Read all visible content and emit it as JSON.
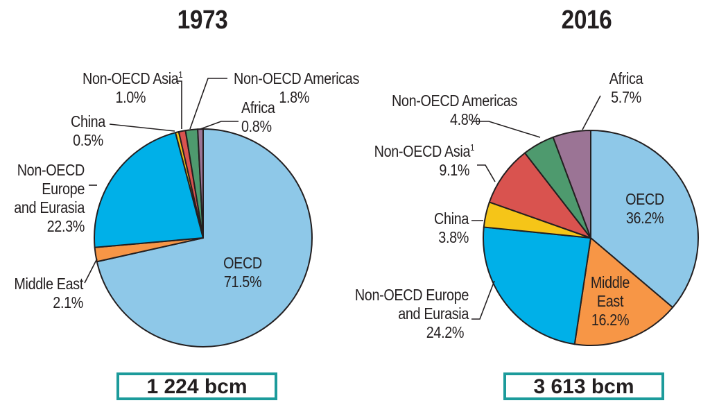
{
  "chart_data": [
    {
      "type": "pie",
      "title": "1973",
      "total": "1 224 bcm",
      "slices": [
        {
          "name": "OECD",
          "label": "OECD",
          "value": 71.5,
          "value_label": "71.5%",
          "color": "#8ec8e8"
        },
        {
          "name": "Middle East",
          "label": "Middle East",
          "value": 2.1,
          "value_label": "2.1%",
          "color": "#f79646"
        },
        {
          "name": "Non-OECD Europe and Eurasia",
          "label_lines": [
            "Non-OECD",
            "Europe",
            "and Eurasia"
          ],
          "value": 22.3,
          "value_label": "22.3%",
          "color": "#00b0e8"
        },
        {
          "name": "China",
          "label": "China",
          "value": 0.5,
          "value_label": "0.5%",
          "color": "#f5c518"
        },
        {
          "name": "Non-OECD Asia",
          "label": "Non-OECD Asia",
          "footnote": "1",
          "value": 1.0,
          "value_label": "1.0%",
          "color": "#d9534f"
        },
        {
          "name": "Non-OECD Americas",
          "label": "Non-OECD Americas",
          "value": 1.8,
          "value_label": "1.8%",
          "color": "#4e9a6e"
        },
        {
          "name": "Africa",
          "label": "Africa",
          "value": 0.8,
          "value_label": "0.8%",
          "color": "#9b7495"
        }
      ]
    },
    {
      "type": "pie",
      "title": "2016",
      "total": "3 613 bcm",
      "slices": [
        {
          "name": "OECD",
          "label": "OECD",
          "value": 36.2,
          "value_label": "36.2%",
          "color": "#8ec8e8"
        },
        {
          "name": "Middle East",
          "label_lines": [
            "Middle",
            "East"
          ],
          "value": 16.2,
          "value_label": "16.2%",
          "color": "#f79646"
        },
        {
          "name": "Non-OECD Europe and Eurasia",
          "label_lines": [
            "Non-OECD Europe",
            "and Eurasia"
          ],
          "value": 24.2,
          "value_label": "24.2%",
          "color": "#00b0e8"
        },
        {
          "name": "China",
          "label": "China",
          "value": 3.8,
          "value_label": "3.8%",
          "color": "#f5c518"
        },
        {
          "name": "Non-OECD Asia",
          "label": "Non-OECD Asia",
          "footnote": "1",
          "value": 9.1,
          "value_label": "9.1%",
          "color": "#d9534f"
        },
        {
          "name": "Non-OECD Americas",
          "label": "Non-OECD Americas",
          "value": 4.8,
          "value_label": "4.8%",
          "color": "#4e9a6e"
        },
        {
          "name": "Africa",
          "label": "Africa",
          "value": 5.7,
          "value_label": "5.7%",
          "color": "#9b7495"
        }
      ]
    }
  ]
}
